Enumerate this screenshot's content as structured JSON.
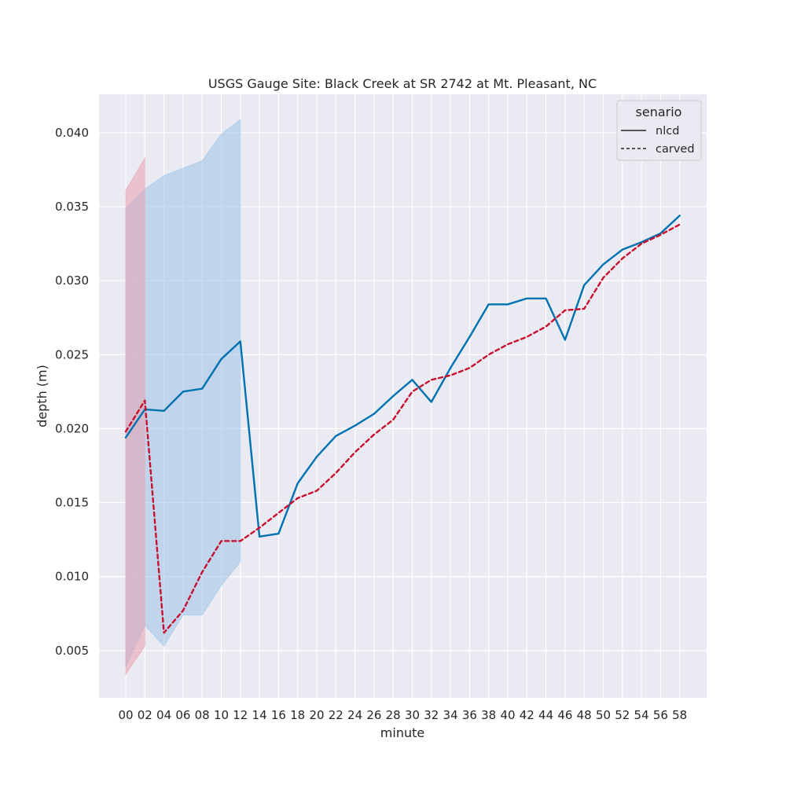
{
  "chart_data": {
    "type": "line",
    "title": "USGS Gauge Site: Black Creek at SR 2742 at Mt. Pleasant, NC",
    "xlabel": "minute",
    "ylabel": "depth (m)",
    "x": [
      "00",
      "02",
      "04",
      "06",
      "08",
      "10",
      "12",
      "14",
      "16",
      "18",
      "20",
      "22",
      "24",
      "26",
      "28",
      "30",
      "32",
      "34",
      "36",
      "38",
      "40",
      "42",
      "44",
      "46",
      "48",
      "50",
      "52",
      "54",
      "56",
      "58"
    ],
    "y_ticks": [
      0.005,
      0.01,
      0.015,
      0.02,
      0.025,
      0.03,
      0.035,
      0.04
    ],
    "y_tick_labels": [
      "0.005",
      "0.010",
      "0.015",
      "0.020",
      "0.025",
      "0.030",
      "0.035",
      "0.040"
    ],
    "ylim": [
      0.0018,
      0.0426
    ],
    "grid": true,
    "legend": {
      "title": "senario",
      "placement": "top-right"
    },
    "series": [
      {
        "name": "nlcd",
        "style": "solid",
        "color": "#0072B2",
        "values": [
          0.0194,
          0.0213,
          0.0212,
          0.0225,
          0.0227,
          0.0247,
          0.0259,
          0.0127,
          0.0129,
          0.0163,
          0.0181,
          0.0195,
          0.0202,
          0.021,
          0.0222,
          0.0233,
          0.0218,
          0.0241,
          0.0262,
          0.0284,
          0.0284,
          0.0288,
          0.0288,
          0.026,
          0.0297,
          0.0311,
          0.0321,
          0.0326,
          0.0332,
          0.0344
        ],
        "ci_x": [
          "00",
          "02",
          "04",
          "06",
          "08",
          "10",
          "12"
        ],
        "ci_lower": [
          0.0039,
          0.0067,
          0.0053,
          0.0074,
          0.0074,
          0.0094,
          0.011
        ],
        "ci_upper": [
          0.0349,
          0.0362,
          0.0371,
          0.0376,
          0.0381,
          0.0399,
          0.0409
        ]
      },
      {
        "name": "carved",
        "style": "dashed",
        "color": "#C8102E",
        "values": [
          0.0198,
          0.0219,
          0.0062,
          0.0077,
          0.0103,
          0.0124,
          0.0124,
          0.0133,
          0.0143,
          0.0153,
          0.0158,
          0.017,
          0.0184,
          0.0196,
          0.0206,
          0.0225,
          0.0233,
          0.0236,
          0.0241,
          0.025,
          0.0257,
          0.0262,
          0.0269,
          0.028,
          0.0281,
          0.0302,
          0.0315,
          0.0325,
          0.0331,
          0.0338
        ],
        "ci_x": [
          "00",
          "02"
        ],
        "ci_lower": [
          0.0034,
          0.0053
        ],
        "ci_upper": [
          0.0361,
          0.0383
        ]
      }
    ]
  }
}
